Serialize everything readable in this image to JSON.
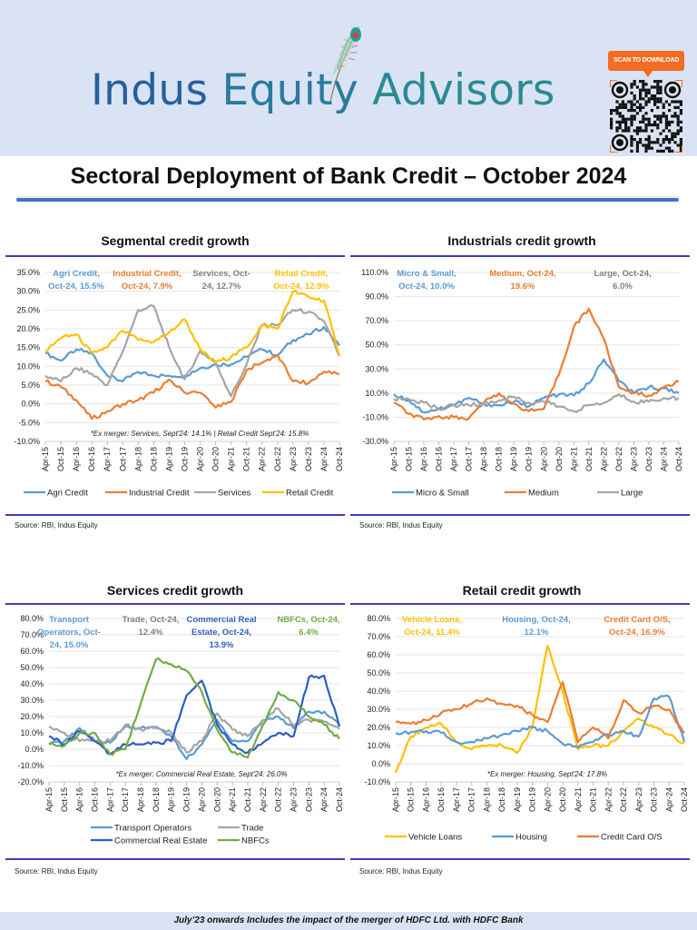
{
  "header": {
    "brand": [
      "Indus",
      "Equity",
      "Advisors"
    ],
    "scan_label": "SCAN TO DOWNLOAD",
    "page_title": "Sectoral Deployment of Bank Credit – October 2024"
  },
  "footer_note": "July’23 onwards Includes the impact of the merger of HDFC Ltd. with HDFC Bank",
  "chart_data": [
    {
      "id": "segmental",
      "type": "line",
      "title": "Segmental credit growth",
      "xlabel": "",
      "ylabel": "",
      "ylim": [
        -10,
        35
      ],
      "yticks": [
        -10,
        -5,
        0,
        5,
        10,
        15,
        20,
        25,
        30,
        35
      ],
      "ytick_labels": [
        "-10.0%",
        "-5.0%",
        "0.0%",
        "5.0%",
        "10.0%",
        "15.0%",
        "20.0%",
        "25.0%",
        "30.0%",
        "35.0%"
      ],
      "categories": [
        "Apr-15",
        "Oct-15",
        "Apr-16",
        "Oct-16",
        "Apr-17",
        "Oct-17",
        "Apr-18",
        "Oct-18",
        "Apr-19",
        "Oct-19",
        "Apr-20",
        "Oct-20",
        "Apr-21",
        "Oct-21",
        "Apr-22",
        "Oct-22",
        "Apr-23",
        "Oct-23",
        "Apr-24",
        "Oct-24"
      ],
      "grid": true,
      "legend": "bottom",
      "note": "*Ex merger: Services, Sept'24: 14.1% | Retail Credit Sept'24: 15.8%",
      "series": [
        {
          "name": "Agri Credit",
          "color": "#5b9bd5",
          "annotation": [
            "Agri Credit,",
            "Oct-24, 15.5%"
          ],
          "values": [
            13.5,
            11.5,
            14.5,
            13.5,
            7.5,
            6.0,
            8.5,
            7.5,
            7.5,
            7.5,
            9.5,
            10.5,
            10.5,
            12.5,
            14.5,
            13.0,
            17.0,
            18.5,
            20.5,
            15.5
          ]
        },
        {
          "name": "Industrial Credit",
          "color": "#ed7d31",
          "annotation": [
            "Industrial Credit,",
            "Oct-24, 7.9%"
          ],
          "values": [
            6.0,
            4.5,
            1.0,
            -4.0,
            -2.0,
            0.0,
            1.0,
            3.0,
            6.5,
            3.0,
            3.0,
            -1.0,
            0.5,
            9.0,
            11.0,
            13.0,
            6.0,
            5.5,
            8.5,
            7.9
          ]
        },
        {
          "name": "Services",
          "color": "#a5a5a5",
          "annotation": [
            "Services, Oct-",
            "24, 12.7%"
          ],
          "values": [
            7.5,
            6.0,
            9.5,
            8.0,
            5.0,
            14.0,
            25.0,
            26.0,
            15.0,
            6.5,
            14.0,
            11.0,
            2.0,
            10.5,
            21.0,
            21.0,
            25.0,
            24.5,
            22.0,
            12.7
          ]
        },
        {
          "name": "Retail Credit",
          "color": "#ffc000",
          "annotation": [
            "Retail Credit,",
            "Oct-24, 12.9%"
          ],
          "values": [
            14.0,
            17.5,
            18.5,
            13.5,
            15.0,
            19.5,
            17.0,
            16.5,
            19.0,
            22.5,
            14.5,
            11.0,
            12.5,
            15.0,
            21.0,
            20.0,
            30.0,
            28.5,
            27.5,
            12.9
          ]
        }
      ]
    },
    {
      "id": "industrials",
      "type": "line",
      "title": "Industrials credit growth",
      "xlabel": "",
      "ylabel": "",
      "ylim": [
        -30,
        110
      ],
      "yticks": [
        -30,
        -10,
        10,
        30,
        50,
        70,
        90,
        110
      ],
      "ytick_labels": [
        "-30.0%",
        "-10.0%",
        "10.0%",
        "30.0%",
        "50.0%",
        "70.0%",
        "90.0%",
        "110.0%"
      ],
      "categories": [
        "Apr-15",
        "Oct-15",
        "Apr-16",
        "Oct-16",
        "Apr-17",
        "Oct-17",
        "Apr-18",
        "Oct-18",
        "Apr-19",
        "Oct-19",
        "Apr-20",
        "Oct-20",
        "Apr-21",
        "Oct-21",
        "Apr-22",
        "Oct-22",
        "Apr-23",
        "Oct-23",
        "Apr-24",
        "Oct-24"
      ],
      "grid": true,
      "legend": "bottom",
      "series": [
        {
          "name": "Micro & Small",
          "color": "#5b9bd5",
          "annotation": [
            "Micro & Small,",
            "Oct-24, 10.0%"
          ],
          "values": [
            9.0,
            4.0,
            -6.0,
            -3.0,
            0.0,
            6.0,
            1.0,
            0.0,
            3.0,
            -1.0,
            6.0,
            9.0,
            8.0,
            18.0,
            38.0,
            20.0,
            10.0,
            15.0,
            14.0,
            10.0
          ]
        },
        {
          "name": "Medium",
          "color": "#ed7d31",
          "annotation": [
            "Medium, Oct-24,",
            "19.6%"
          ],
          "values": [
            2.0,
            -7.0,
            -12.0,
            -9.0,
            -10.0,
            -11.0,
            2.0,
            10.0,
            1.0,
            -5.0,
            -3.0,
            25.0,
            65.0,
            80.0,
            55.0,
            15.0,
            10.0,
            8.0,
            15.0,
            19.6
          ]
        },
        {
          "name": "Large",
          "color": "#a5a5a5",
          "annotation": [
            "Large, Oct-24,",
            "6.0%"
          ],
          "values": [
            5.0,
            5.0,
            2.0,
            -3.0,
            0.0,
            0.0,
            1.0,
            4.0,
            7.0,
            2.0,
            3.0,
            -1.0,
            -5.0,
            0.0,
            2.0,
            9.0,
            3.0,
            3.0,
            6.0,
            6.0
          ]
        }
      ]
    },
    {
      "id": "services",
      "type": "line",
      "title": "Services credit growth",
      "xlabel": "",
      "ylabel": "",
      "ylim": [
        -20,
        80
      ],
      "yticks": [
        -20,
        -10,
        0,
        10,
        20,
        30,
        40,
        50,
        60,
        70,
        80
      ],
      "ytick_labels": [
        "-20.0%",
        "-10.0%",
        "0.0%",
        "10.0%",
        "20.0%",
        "30.0%",
        "40.0%",
        "50.0%",
        "60.0%",
        "70.0%",
        "80.0%"
      ],
      "categories": [
        "Apr-15",
        "Oct-15",
        "Apr-16",
        "Oct-16",
        "Apr-17",
        "Oct-17",
        "Apr-18",
        "Oct-18",
        "Apr-19",
        "Oct-19",
        "Apr-20",
        "Oct-20",
        "Apr-21",
        "Oct-21",
        "Apr-22",
        "Oct-22",
        "Apr-23",
        "Oct-23",
        "Apr-24",
        "Oct-24"
      ],
      "grid": true,
      "legend": "bottom",
      "note": "*Ex merger: Commercial Real Estate, Sept'24: 26.0%",
      "series": [
        {
          "name": "Transport Operators",
          "color": "#5b9bd5",
          "annotation": [
            "Transport",
            "Operators, Oct-",
            "24, 15.0%"
          ],
          "values": [
            3.0,
            5.0,
            13.0,
            5.0,
            4.0,
            14.0,
            13.0,
            13.0,
            8.0,
            -6.0,
            3.0,
            18.0,
            5.0,
            5.0,
            18.0,
            20.0,
            13.0,
            23.0,
            23.0,
            15.0
          ]
        },
        {
          "name": "Trade",
          "color": "#a5a5a5",
          "annotation": [
            "Trade, Oct-24,",
            "12.4%"
          ],
          "values": [
            14.0,
            10.0,
            5.0,
            5.0,
            5.0,
            15.0,
            12.0,
            14.0,
            10.0,
            -2.0,
            5.0,
            22.0,
            12.0,
            8.0,
            18.0,
            25.0,
            15.0,
            18.0,
            17.0,
            12.4
          ]
        },
        {
          "name": "Commercial Real Estate",
          "color": "#2e5fbf",
          "annotation": [
            "Commercial Real",
            "Estate, Oct-24,",
            "13.9%"
          ],
          "values": [
            8.0,
            3.0,
            11.0,
            5.0,
            -3.0,
            3.0,
            3.0,
            4.0,
            5.0,
            33.0,
            42.0,
            15.0,
            3.0,
            -2.0,
            4.0,
            10.0,
            8.0,
            44.0,
            45.0,
            13.9
          ]
        },
        {
          "name": "NBFCs",
          "color": "#70ad47",
          "annotation": [
            "NBFCs, Oct-24,",
            "6.4%"
          ],
          "values": [
            3.0,
            2.0,
            10.0,
            10.0,
            -3.0,
            0.0,
            28.0,
            55.0,
            52.0,
            48.0,
            35.0,
            12.0,
            -2.0,
            -5.0,
            15.0,
            35.0,
            30.0,
            20.0,
            15.0,
            6.4
          ]
        }
      ]
    },
    {
      "id": "retail",
      "type": "line",
      "title": "Retail credit growth",
      "xlabel": "",
      "ylabel": "",
      "ylim": [
        -10,
        80
      ],
      "yticks": [
        -10,
        0,
        10,
        20,
        30,
        40,
        50,
        60,
        70,
        80
      ],
      "ytick_labels": [
        "-10.0%",
        "0.0%",
        "10.0%",
        "20.0%",
        "30.0%",
        "40.0%",
        "50.0%",
        "60.0%",
        "70.0%",
        "80.0%"
      ],
      "categories": [
        "Apr-15",
        "Oct-15",
        "Apr-16",
        "Oct-16",
        "Apr-17",
        "Oct-17",
        "Apr-18",
        "Oct-18",
        "Apr-19",
        "Oct-19",
        "Apr-20",
        "Oct-20",
        "Apr-21",
        "Oct-21",
        "Apr-22",
        "Oct-22",
        "Apr-23",
        "Oct-23",
        "Apr-24",
        "Oct-24"
      ],
      "grid": true,
      "legend": "bottom",
      "note": "*Ex merger: Housing, Sept'24: 17.8%",
      "series": [
        {
          "name": "Vehicle Loans",
          "color": "#ffc000",
          "annotation": [
            "Vehicle Loans,",
            "Oct-24, 11.4%"
          ],
          "values": [
            -5.0,
            15.0,
            20.0,
            22.0,
            12.0,
            8.0,
            10.0,
            10.0,
            6.0,
            20.0,
            65.0,
            40.0,
            8.0,
            10.0,
            10.0,
            18.0,
            25.0,
            20.0,
            16.0,
            11.4
          ]
        },
        {
          "name": "Housing",
          "color": "#5b9bd5",
          "annotation": [
            "Housing, Oct-24,",
            "12.1%"
          ],
          "values": [
            17.0,
            17.5,
            18.0,
            17.0,
            12.0,
            12.0,
            14.0,
            16.0,
            18.0,
            20.0,
            18.0,
            11.0,
            9.0,
            12.0,
            16.0,
            18.0,
            15.0,
            36.0,
            37.0,
            12.1
          ]
        },
        {
          "name": "Credit Card O/S",
          "color": "#ed7d31",
          "annotation": [
            "Credit Card O/S,",
            "Oct-24, 16.9%"
          ],
          "values": [
            23.0,
            22.0,
            24.0,
            28.0,
            30.0,
            33.0,
            36.0,
            33.0,
            32.0,
            27.0,
            23.0,
            45.0,
            12.0,
            20.0,
            14.0,
            35.0,
            28.0,
            32.0,
            30.0,
            16.9
          ]
        }
      ]
    }
  ],
  "sources": [
    "Source: RBI, Indus Equity",
    "Source: RBI, Indus Equity",
    "Source: RBI, Indus Equity",
    "Source: RBI, Indus Equity"
  ]
}
